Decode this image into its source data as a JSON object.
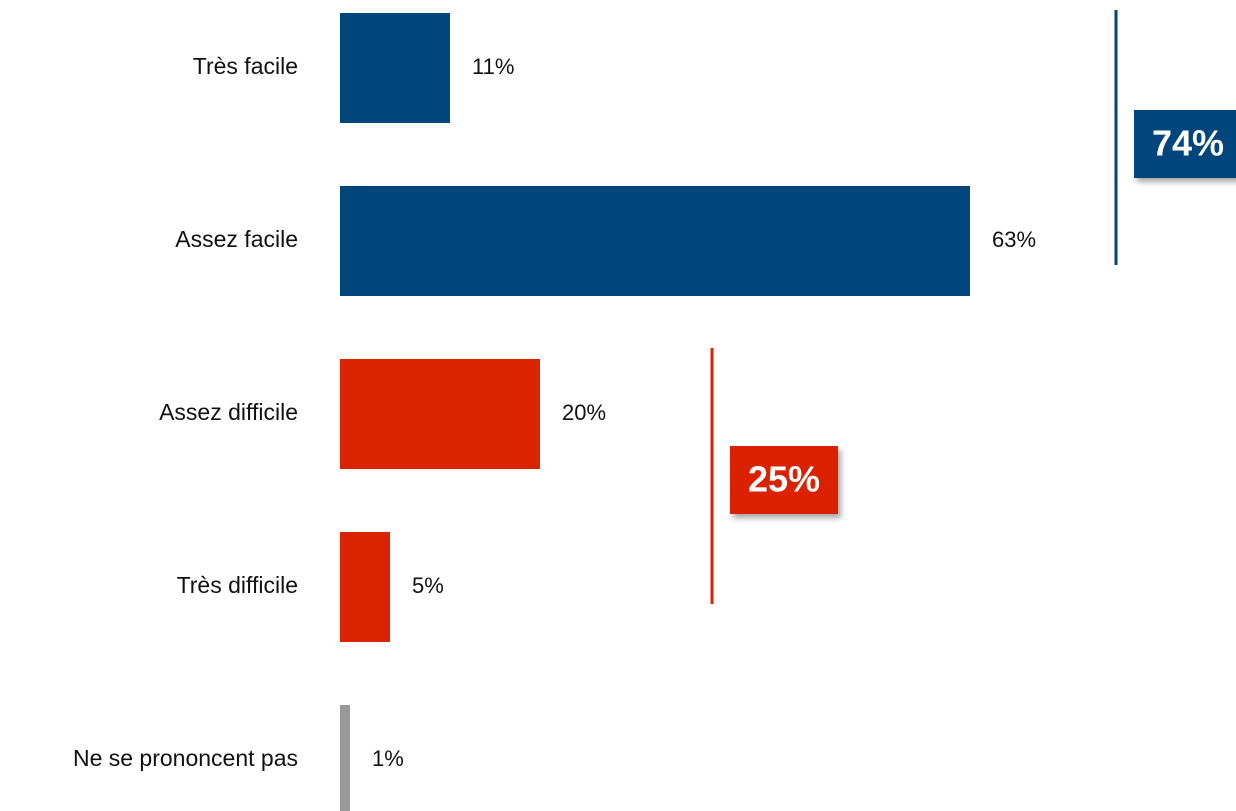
{
  "chart_data": {
    "type": "bar",
    "orientation": "horizontal",
    "categories": [
      "Très facile",
      "Assez facile",
      "Assez difficile",
      "Très difficile",
      "Ne se prononcent pas"
    ],
    "values": [
      11,
      63,
      20,
      5,
      1
    ],
    "value_labels": [
      "11%",
      "63%",
      "20%",
      "5%",
      "1%"
    ],
    "bar_colors": [
      "#00457C",
      "#00457C",
      "#DA2300",
      "#DA2300",
      "#999999"
    ],
    "xlim": [
      0,
      63
    ],
    "grid": false,
    "legend": "none",
    "groups": [
      {
        "total": "74%",
        "color": "#00457C",
        "categories": [
          "Très facile",
          "Assez facile"
        ]
      },
      {
        "total": "25%",
        "color": "#DA2300",
        "categories": [
          "Assez difficile",
          "Très difficile"
        ]
      }
    ]
  }
}
